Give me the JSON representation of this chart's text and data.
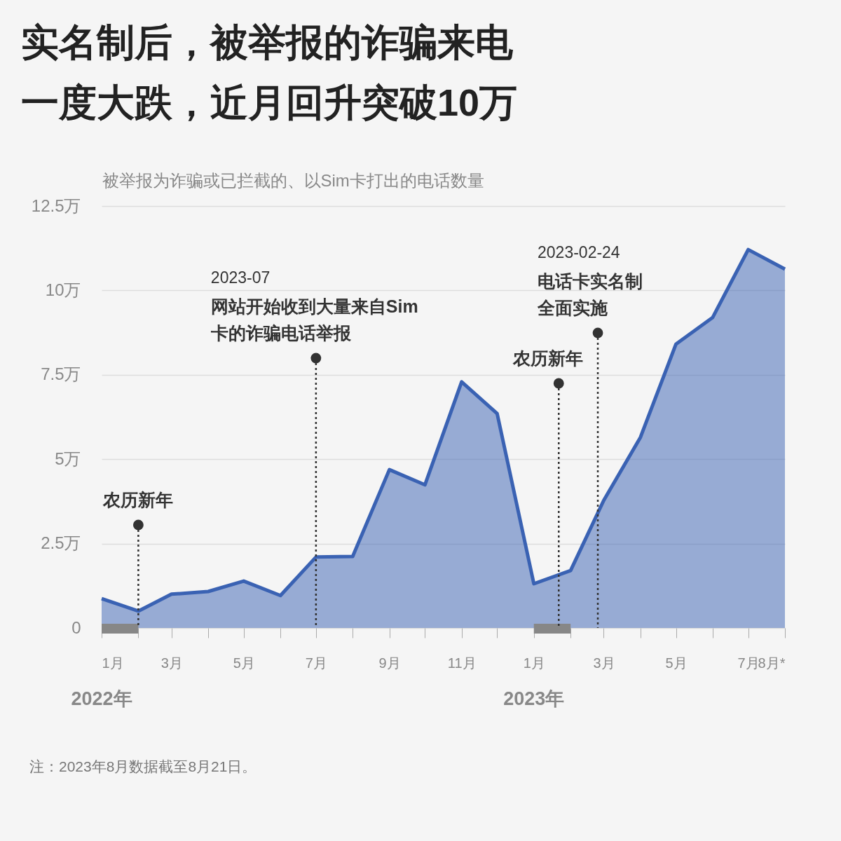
{
  "chart_data": {
    "type": "area",
    "title": "实名制后，被举报的诈骗来电一度大跌，近月回升突破10万",
    "ylabel": "被举报为诈骗或已拦截的、以Sim卡打出的电话数量",
    "x": [
      "2022-01",
      "2022-02",
      "2022-03",
      "2022-04",
      "2022-05",
      "2022-06",
      "2022-07",
      "2022-08",
      "2022-09",
      "2022-10",
      "2022-11",
      "2022-12",
      "2023-01",
      "2023-02",
      "2023-03",
      "2023-04",
      "2023-05",
      "2023-06",
      "2023-07",
      "2023-08"
    ],
    "series": [
      {
        "color": "#3a62b3",
        "values": [
          0.87,
          0.5,
          1.0,
          1.08,
          1.39,
          0.96,
          2.1,
          2.12,
          4.69,
          4.24,
          7.29,
          6.35,
          1.31,
          1.7,
          3.78,
          5.65,
          8.41,
          9.2,
          11.21,
          10.63
        ]
      }
    ],
    "xlim": [
      "2022-01",
      "2023-08"
    ],
    "xticks": [
      {
        "value": "2022-01",
        "label": "1月"
      },
      {
        "value": "2022-02",
        "label": null
      },
      {
        "value": "2022-03",
        "label": "3月"
      },
      {
        "value": "2022-04",
        "label": null
      },
      {
        "value": "2022-05",
        "label": "5月"
      },
      {
        "value": "2022-06",
        "label": null
      },
      {
        "value": "2022-07",
        "label": "7月"
      },
      {
        "value": "2022-08",
        "label": null
      },
      {
        "value": "2022-09",
        "label": "9月"
      },
      {
        "value": "2022-10",
        "label": null
      },
      {
        "value": "2022-11",
        "label": "11月"
      },
      {
        "value": "2022-12",
        "label": null
      },
      {
        "value": "2023-01",
        "label": "1月"
      },
      {
        "value": "2023-02",
        "label": null
      },
      {
        "value": "2023-03",
        "label": "3月"
      },
      {
        "value": "2023-04",
        "label": null
      },
      {
        "value": "2023-05",
        "label": "5月"
      },
      {
        "value": "2023-06",
        "label": null
      },
      {
        "value": "2023-07",
        "label": "7月"
      },
      {
        "value": "2023-08",
        "label": "8月*"
      }
    ],
    "ylim": [
      0,
      12.5
    ],
    "yticks": [
      {
        "value": 0,
        "label": "0"
      },
      {
        "value": 2.5,
        "label": "2.5万"
      },
      {
        "value": 5,
        "label": "5万"
      },
      {
        "value": 7.5,
        "label": "7.5万"
      },
      {
        "value": 10,
        "label": "10万"
      },
      {
        "value": 12.5,
        "label": "12.5万"
      }
    ],
    "grid": "y",
    "ref_lines": [
      {
        "axis": "x",
        "value": "2022-02-01",
        "label": "农历新年",
        "color": "#333333",
        "line_style": "dotted"
      },
      {
        "axis": "x",
        "value": "2022-07",
        "label": "网站开始收到大量来自Sim卡的诈骗电话举报",
        "color": "#333333",
        "line_style": "dotted"
      },
      {
        "axis": "x",
        "value": "2023-01-22",
        "label": "农历新年",
        "color": "#333333",
        "line_style": "dotted"
      },
      {
        "axis": "x",
        "value": "2023-02-24",
        "label": "电话卡实名制全面实施",
        "color": "#333333",
        "line_style": "dotted"
      }
    ],
    "annotations": [
      "2023-07",
      "2023-02-24",
      "2022年",
      "2023年",
      "注：2023年8月数据截至8月21日。"
    ]
  }
}
